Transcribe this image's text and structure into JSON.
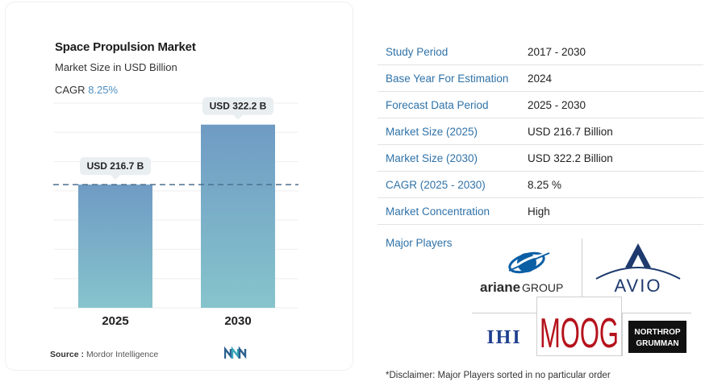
{
  "chart_data": {
    "type": "bar",
    "title": "Space Propulsion Market",
    "subtitle": "Market Size in USD Billion",
    "cagr_label": "CAGR",
    "cagr_value": "8.25%",
    "categories": [
      "2025",
      "2030"
    ],
    "values": [
      216.7,
      322.2
    ],
    "data_labels": [
      "USD 216.7 B",
      "USD 322.2 B"
    ],
    "ylim": [
      0,
      360
    ],
    "grid": true,
    "reference_line": 216.7,
    "bar_color_top": "#6f9bc4",
    "bar_color_bottom": "#86c4cc"
  },
  "source": {
    "label": "Source :",
    "text": "Mordor Intelligence"
  },
  "table": [
    {
      "key": "Study Period",
      "value": "2017 - 2030"
    },
    {
      "key": "Base Year For Estimation",
      "value": "2024"
    },
    {
      "key": "Forecast Data Period",
      "value": "2025 - 2030"
    },
    {
      "key": "Market Size (2025)",
      "value": "USD 216.7 Billion"
    },
    {
      "key": "Market Size (2030)",
      "value": "USD 322.2 Billion"
    },
    {
      "key": "CAGR (2025 - 2030)",
      "value": "8.25 %"
    },
    {
      "key": "Market Concentration",
      "value": "High"
    }
  ],
  "major_players_label": "Major Players",
  "players": {
    "ariane": {
      "name_a": "ariane",
      "name_b": "GROUP"
    },
    "avio": "AVIO",
    "ihi": "IHI",
    "moog": "MOOG",
    "northrop": {
      "line1": "NORTHROP",
      "line2": "GRUMMAN"
    }
  },
  "disclaimer": "*Disclaimer: Major Players sorted in no particular order",
  "colors": {
    "accent_blue": "#2f72a8",
    "moog_red": "#b5121b",
    "ihi_blue": "#1f3f8f",
    "ariane_blue": "#0b5fa5",
    "avio_navy": "#1e3a6e"
  }
}
